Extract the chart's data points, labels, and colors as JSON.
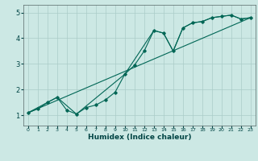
{
  "title": "",
  "xlabel": "Humidex (Indice chaleur)",
  "xlim": [
    -0.5,
    23.5
  ],
  "ylim": [
    0.6,
    5.3
  ],
  "bg_color": "#cce8e4",
  "line_color": "#006655",
  "line1_x": [
    0,
    1,
    2,
    3,
    4,
    5,
    6,
    7,
    8,
    9,
    10,
    11,
    12,
    13,
    14,
    15,
    16,
    17,
    18,
    19,
    20,
    21,
    22,
    23
  ],
  "line1_y": [
    1.1,
    1.25,
    1.5,
    1.7,
    1.2,
    1.05,
    1.3,
    1.4,
    1.6,
    1.9,
    2.6,
    2.95,
    3.5,
    4.3,
    4.2,
    3.5,
    4.4,
    4.6,
    4.65,
    4.8,
    4.85,
    4.9,
    4.75,
    4.8
  ],
  "line2_x": [
    0,
    3,
    5,
    10,
    13,
    14,
    15,
    16,
    17,
    18,
    19,
    20,
    21,
    22,
    23
  ],
  "line2_y": [
    1.1,
    1.7,
    1.05,
    2.6,
    4.3,
    4.2,
    3.5,
    4.4,
    4.6,
    4.65,
    4.8,
    4.85,
    4.9,
    4.75,
    4.8
  ],
  "line3_x": [
    0,
    23
  ],
  "line3_y": [
    1.1,
    4.8
  ],
  "xticks": [
    0,
    1,
    2,
    3,
    4,
    5,
    6,
    7,
    8,
    9,
    10,
    11,
    12,
    13,
    14,
    15,
    16,
    17,
    18,
    19,
    20,
    21,
    22,
    23
  ],
  "yticks": [
    1,
    2,
    3,
    4,
    5
  ],
  "grid_color": "#aaccc8",
  "tick_color": "#004444",
  "xlabel_fontsize": 6.5,
  "ytick_fontsize": 6,
  "xtick_fontsize": 4.5
}
